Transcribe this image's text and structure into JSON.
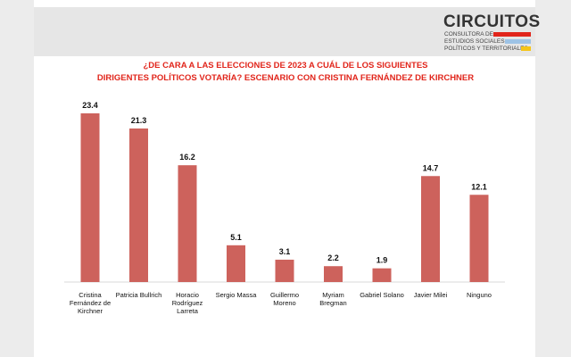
{
  "header": {
    "logo": "CIRCUITOS",
    "tagline": [
      "CONSULTORA DE",
      "ESTUDIOS SOCIALES,",
      "POLÍTICOS Y TERRITORIALES"
    ]
  },
  "chart_data": {
    "type": "bar",
    "title": [
      "¿DE CARA A LAS ELECCIONES DE 2023 A CUÁL DE LOS SIGUIENTES",
      "DIRIGENTES POLÍTICOS VOTARÍA? ESCENARIO CON CRISTINA FERNÁNDEZ DE KIRCHNER"
    ],
    "categories": [
      "Cristina Fernández de Kirchner",
      "Patricia Bullrich",
      "Horacio Rodríguez Larreta",
      "Sergio Massa",
      "Guillermo Moreno",
      "Myriam Bregman",
      "Gabriel Solano",
      "Javier Milei",
      "Ninguno"
    ],
    "values": [
      23.4,
      21.3,
      16.2,
      5.1,
      3.1,
      2.2,
      1.9,
      14.7,
      12.1
    ],
    "color": "#cd625c"
  }
}
